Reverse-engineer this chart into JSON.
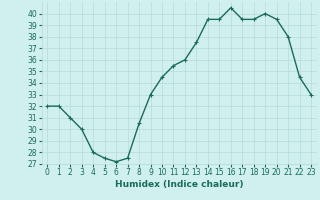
{
  "x": [
    0,
    1,
    2,
    3,
    4,
    5,
    6,
    7,
    8,
    9,
    10,
    11,
    12,
    13,
    14,
    15,
    16,
    17,
    18,
    19,
    20,
    21,
    22,
    23
  ],
  "y": [
    32,
    32,
    31,
    30,
    28,
    27.5,
    27.2,
    27.5,
    30.5,
    33,
    34.5,
    35.5,
    36,
    37.5,
    39.5,
    39.5,
    40.5,
    39.5,
    39.5,
    40,
    39.5,
    38,
    34.5,
    33
  ],
  "line_color": "#1a6b5a",
  "marker": "+",
  "marker_size": 3,
  "bg_color": "#cff0ee",
  "grid_color": "#b8dad8",
  "xlabel": "Humidex (Indice chaleur)",
  "xlim": [
    -0.5,
    23.5
  ],
  "ylim": [
    27,
    41
  ],
  "yticks": [
    27,
    28,
    29,
    30,
    31,
    32,
    33,
    34,
    35,
    36,
    37,
    38,
    39,
    40
  ],
  "xticks": [
    0,
    1,
    2,
    3,
    4,
    5,
    6,
    7,
    8,
    9,
    10,
    11,
    12,
    13,
    14,
    15,
    16,
    17,
    18,
    19,
    20,
    21,
    22,
    23
  ],
  "tick_fontsize": 5.5,
  "label_fontsize": 6.5,
  "line_width": 1.0
}
